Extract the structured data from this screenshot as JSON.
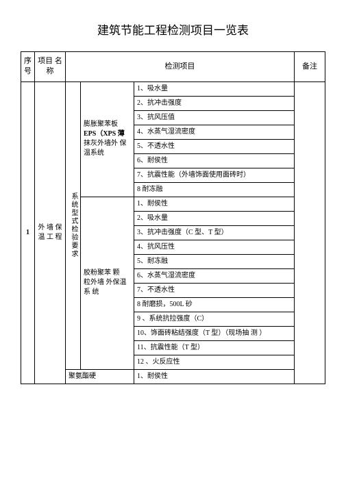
{
  "title": "建筑节能工程检测项目一览表",
  "headers": {
    "seq": "序号",
    "project": "项目 名称",
    "inspect": "检测项目",
    "remark": "备注"
  },
  "row1": {
    "seq": "1",
    "project": "外 墙 保温 工 程",
    "sysReq": "系统型式检验要求"
  },
  "type1": {
    "line1": "膨胀聚苯板",
    "line2": "EPS（XPS 薄",
    "line3": "抹灰外墙外 保温系统"
  },
  "type2": {
    "line1": "胶粉聚苯 颗",
    "line2": "粒外墙 外保温",
    "line3": "系 统"
  },
  "type3": "聚氨酯硬",
  "items1": {
    "i1": "1、吸水量",
    "i2": "2、抗冲击强度",
    "i3": "3、抗风压值",
    "i4": "4、水蒸气湿流密度",
    "i5": "5、不透水性",
    "i6": "6、耐侯性",
    "i7": "7、抗震性能（外墙饰面使用面砖时）",
    "i8": "8 耐冻融"
  },
  "items2": {
    "i1": "1、耐侯性",
    "i2": "2、吸水量",
    "i3": "3、抗冲击强度（C 型、T 型）",
    "i4": "4、抗风压性",
    "i5": "5、耐冻融",
    "i6": "6、水蒸气湿流密度",
    "i7": "7、不透水性",
    "i8": "8 耐磨损，500L 砂",
    "i9": "9 、系统抗拉强度（C）",
    "i10": "10、饰面砖粘结强度（T 型）（现场抽 测 ）",
    "i11": "11、抗震性能（T 型）",
    "i12": "12 、火反应性"
  },
  "items3": {
    "i1": "1、耐侯性"
  }
}
